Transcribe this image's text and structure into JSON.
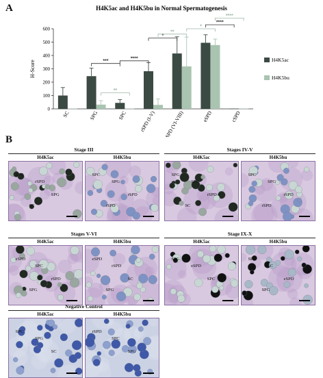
{
  "panel_a_letter": "A",
  "panel_b_letter": "B",
  "chart_data": {
    "type": "bar",
    "title": "H4K5ac and H4K5bu in Normal Spermatogenesis",
    "ylabel": "H-Score",
    "xlabel": "",
    "ylim": [
      0,
      600
    ],
    "yticks": [
      0,
      100,
      200,
      300,
      400,
      500,
      600
    ],
    "categories": [
      "SC",
      "SPG",
      "SPC",
      "rSPD (I-V)",
      "rSPD (VI-VIII)",
      "eSPD",
      "cSPD"
    ],
    "legend_position": "right",
    "series": [
      {
        "name": "H4K5ac",
        "color": "#3c4a44",
        "values": [
          100,
          245,
          45,
          282,
          415,
          495,
          2
        ],
        "errors": [
          60,
          60,
          25,
          65,
          125,
          60,
          0
        ]
      },
      {
        "name": "H4K5bu",
        "color": "#a9c4b0",
        "values": [
          2,
          32,
          2,
          30,
          318,
          478,
          2
        ],
        "errors": [
          0,
          30,
          0,
          45,
          220,
          45,
          0
        ]
      }
    ],
    "significance": [
      {
        "label": "***",
        "from": 1,
        "to": 2,
        "series": "H4K5ac",
        "y": 340
      },
      {
        "label": "****",
        "from": 2,
        "to": 3,
        "series": "H4K5ac",
        "y": 360
      },
      {
        "label": "**",
        "from": 2,
        "to": 1,
        "series": "H4K5bu",
        "y": 120
      },
      {
        "label": "*",
        "from": 3,
        "to": 4,
        "series": "H4K5ac",
        "y": 530
      },
      {
        "label": "**",
        "from": 3,
        "to": 4,
        "series": "H4K5bu",
        "y": 560
      },
      {
        "label": "*",
        "from": 4,
        "to": 5,
        "series": "H4K5bu",
        "y": 600
      },
      {
        "label": "****",
        "from": 5,
        "to": 6,
        "series": "H4K5ac",
        "y": 630
      },
      {
        "label": "****",
        "from": 5,
        "to": 6,
        "series": "H4K5bu",
        "y": 680
      }
    ]
  },
  "panel_b": {
    "groups": [
      {
        "title": "Stage III",
        "images": [
          {
            "label": "H4K5ac",
            "stain": "ac",
            "cells": [
              "SPC",
              "rSPD",
              "SPG",
              "SC"
            ]
          },
          {
            "label": "H4K5bu",
            "stain": "bu",
            "cells": [
              "SPC",
              "SPG",
              "rSPD",
              "rSPD"
            ]
          }
        ]
      },
      {
        "title": "Stages IV-V",
        "images": [
          {
            "label": "H4K5ac",
            "stain": "ac",
            "cells": [
              "SPG",
              "SPC",
              "rSPD",
              "SC"
            ]
          },
          {
            "label": "H4K5bu",
            "stain": "bu",
            "cells": [
              "SPC",
              "SPG",
              "rSPD",
              "rSPD"
            ]
          }
        ]
      },
      {
        "title": "Stages V-VI",
        "images": [
          {
            "label": "H4K5ac",
            "stain": "ac",
            "cells": [
              "eSPD",
              "SPC",
              "rSPD",
              "SPG"
            ]
          },
          {
            "label": "H4K5bu",
            "stain": "bu",
            "cells": [
              "eSPD",
              "rSPD",
              "SC",
              "SPG"
            ]
          }
        ]
      },
      {
        "title": "Stage IX-X",
        "images": [
          {
            "label": "H4K5ac",
            "stain": "ac2",
            "cells": [
              "SPG",
              "eSPD",
              "SPC"
            ]
          },
          {
            "label": "H4K5bu",
            "stain": "bu2",
            "cells": [
              "SPC",
              "SC",
              "eSPD",
              "SPG"
            ]
          }
        ]
      },
      {
        "title": "Negative Control",
        "images": [
          {
            "label": "H4K5ac",
            "stain": "neg",
            "cells": [
              "SPC",
              "SPG",
              "SC"
            ]
          },
          {
            "label": "H4K5bu",
            "stain": "neg",
            "cells": [
              "rSPD",
              "SPC",
              "SPG"
            ]
          }
        ]
      }
    ]
  },
  "colors": {
    "tissue_bg": "#d9c9e0",
    "tissue_purple": "#b79ac8",
    "nucleus_light": "#c9d7d4",
    "nucleus_blue": "#7f92c4",
    "nucleus_dark": "#202820",
    "neg_bg": "#cbd2e4",
    "neg_nucleus": "#3f58a8"
  }
}
